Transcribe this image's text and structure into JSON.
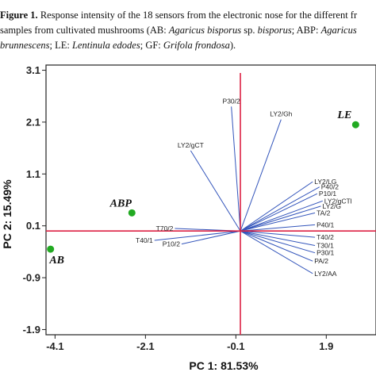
{
  "caption": {
    "label": "Figure 1.",
    "line1_rest": " Response intensity of the 18 sensors from the electronic nose for the different fr",
    "line2_a": "samples from cultivated mushrooms (AB: ",
    "line2_ab": "Agaricus bisporus",
    "line2_b": " sp. ",
    "line2_bisp": "bisporus",
    "line2_c": "; ABP: ",
    "line2_ag": "Agaricus",
    "line3_a": "brunnescens",
    "line3_b": "; LE: ",
    "line3_le": "Lentinula edodes",
    "line3_c": "; GF: ",
    "line3_gf": "Grifola frondosa",
    "line3_d": ")."
  },
  "chart_data": {
    "type": "biplot",
    "xlabel": "PC 1: 81.53%",
    "ylabel": "PC 2: 15.49%",
    "xlim": [
      -4.3,
      3.0
    ],
    "ylim": [
      -2.0,
      3.2
    ],
    "xticks": [
      -4.1,
      -2.1,
      -0.1,
      1.9
    ],
    "yticks": [
      3.1,
      2.1,
      1.1,
      0.1,
      -0.9,
      -1.9
    ],
    "xtick_labels": [
      "-4.1",
      "-2.1",
      "-0.1",
      "1.9"
    ],
    "ytick_labels": [
      "3.1",
      "2.1",
      "1.1",
      "0.1",
      "-0.9",
      "-1.9"
    ],
    "origin": [
      0,
      0
    ],
    "colors": {
      "axis_lines": "#dd2244",
      "loadings": "#3355bb",
      "points": "#22aa22"
    },
    "samples": [
      {
        "name": "AB",
        "x": -4.2,
        "y": -0.35
      },
      {
        "name": "ABP",
        "x": -2.4,
        "y": 0.35
      },
      {
        "name": "LE",
        "x": 2.55,
        "y": 2.05
      }
    ],
    "loadings": [
      {
        "name": "P30/2",
        "x": -0.2,
        "y": 2.4
      },
      {
        "name": "LY2/Gh",
        "x": 0.9,
        "y": 2.15
      },
      {
        "name": "LY2/gCT",
        "x": -1.1,
        "y": 1.55
      },
      {
        "name": "LY2/LG",
        "x": 1.6,
        "y": 0.95
      },
      {
        "name": "P40/2",
        "x": 1.75,
        "y": 0.85
      },
      {
        "name": "P10/1",
        "x": 1.7,
        "y": 0.72
      },
      {
        "name": "LY2/gCTl",
        "x": 1.82,
        "y": 0.58
      },
      {
        "name": "LY2/G",
        "x": 1.78,
        "y": 0.48
      },
      {
        "name": "TA/2",
        "x": 1.65,
        "y": 0.35
      },
      {
        "name": "P40/1",
        "x": 1.65,
        "y": 0.12
      },
      {
        "name": "T40/2",
        "x": 1.65,
        "y": -0.12
      },
      {
        "name": "T30/1",
        "x": 1.65,
        "y": -0.28
      },
      {
        "name": "P30/1",
        "x": 1.65,
        "y": -0.42
      },
      {
        "name": "PA/2",
        "x": 1.6,
        "y": -0.58
      },
      {
        "name": "LY2/AA",
        "x": 1.6,
        "y": -0.82
      },
      {
        "name": "T70/2",
        "x": -1.45,
        "y": 0.05
      },
      {
        "name": "T40/1",
        "x": -1.9,
        "y": -0.18
      },
      {
        "name": "P10/2",
        "x": -1.3,
        "y": -0.25
      }
    ]
  }
}
